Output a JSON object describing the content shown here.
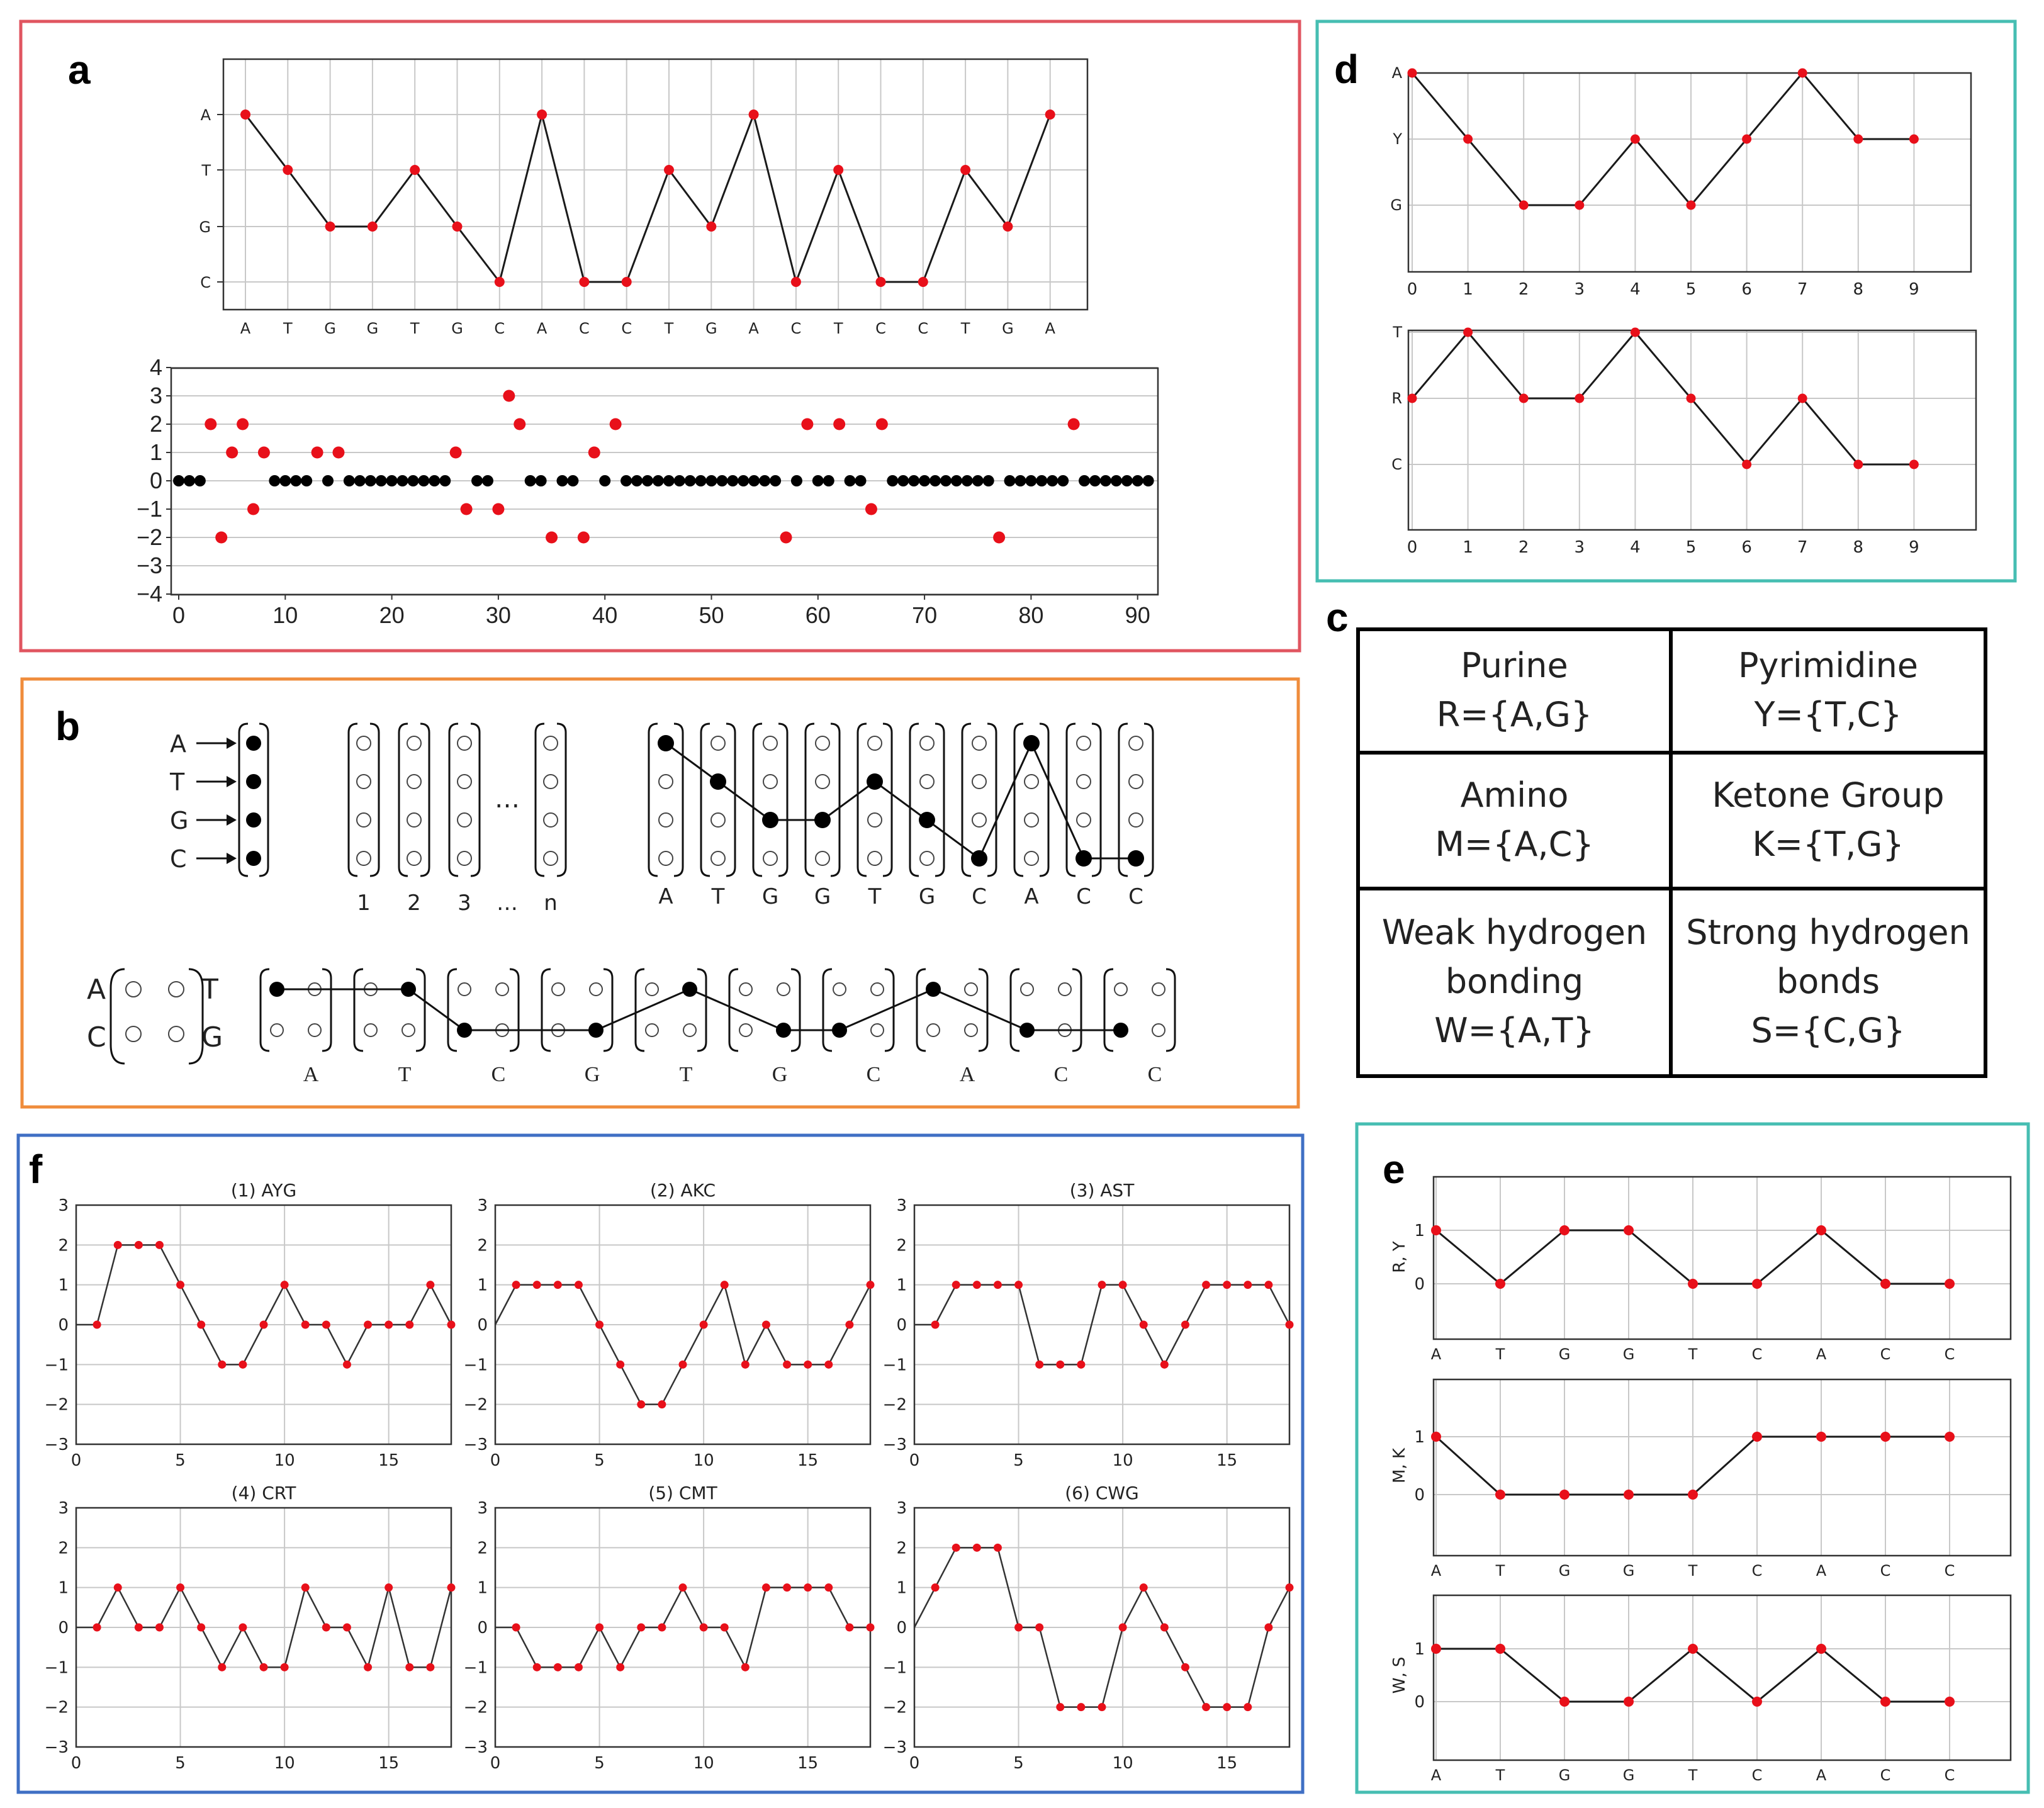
{
  "colors": {
    "red": "#e8101a",
    "panel_a": "#e05560",
    "panel_b": "#ef8c3c",
    "panel_d": "#46beb2",
    "panel_e": "#46beb2",
    "panel_f": "#3f6fc4",
    "line": "#1a1a1a",
    "dot_black": "#000000"
  },
  "panel_labels": {
    "a": "a",
    "b": "b",
    "c": "c",
    "d": "d",
    "e": "e",
    "f": "f"
  },
  "panel_a": {
    "top_chart": {
      "type": "line",
      "y_levels": [
        "A",
        "T",
        "G",
        "C"
      ],
      "sequence": [
        "A",
        "T",
        "G",
        "G",
        "T",
        "G",
        "C",
        "A",
        "C",
        "C",
        "T",
        "G",
        "A",
        "C",
        "T",
        "C",
        "C",
        "T",
        "G",
        "A"
      ]
    },
    "bottom_chart": {
      "type": "scatter",
      "xlim": [
        0,
        91
      ],
      "ylim": [
        -4,
        4
      ],
      "x_ticks": [
        0,
        10,
        20,
        30,
        40,
        50,
        60,
        70,
        80,
        90
      ],
      "y_ticks": [
        4,
        3,
        2,
        1,
        0,
        -1,
        -2,
        -3,
        -4
      ],
      "red_points": [
        [
          3,
          2
        ],
        [
          4,
          -2
        ],
        [
          5,
          1
        ],
        [
          6,
          2
        ],
        [
          7,
          -1
        ],
        [
          8,
          1
        ],
        [
          13,
          1
        ],
        [
          15,
          1
        ],
        [
          26,
          1
        ],
        [
          27,
          -1
        ],
        [
          30,
          -1
        ],
        [
          31,
          3
        ],
        [
          32,
          2
        ],
        [
          35,
          -2
        ],
        [
          38,
          -2
        ],
        [
          39,
          1
        ],
        [
          41,
          2
        ],
        [
          57,
          -2
        ],
        [
          59,
          2
        ],
        [
          62,
          2
        ],
        [
          65,
          -1
        ],
        [
          66,
          2
        ],
        [
          77,
          -2
        ],
        [
          84,
          2
        ]
      ],
      "zero_range": [
        0,
        91
      ]
    }
  },
  "panel_b": {
    "legend_letters": [
      "A",
      "T",
      "G",
      "C"
    ],
    "index_labels": [
      "1",
      "2",
      "3",
      "…",
      "n"
    ],
    "ellipsis": "…",
    "one_hot_sequence": [
      "A",
      "T",
      "G",
      "G",
      "T",
      "G",
      "C",
      "A",
      "C",
      "C"
    ],
    "pair_left": {
      "top_left": "A",
      "top_right": "T",
      "bottom_left": "C",
      "bottom_right": "G"
    },
    "pair_sequence": [
      "A",
      "T",
      "C",
      "G",
      "T",
      "G",
      "C",
      "A",
      "C",
      "C"
    ]
  },
  "panel_c": {
    "cells": [
      {
        "name": "Purine",
        "set": "R={A,G}"
      },
      {
        "name": "Pyrimidine",
        "set": "Y={T,C}"
      },
      {
        "name": "Amino",
        "set": "M={A,C}"
      },
      {
        "name": "Ketone Group",
        "set": "K={T,G}"
      },
      {
        "name": "Weak hydrogen bonding",
        "name_lines": [
          "Weak hydrogen",
          "bonding"
        ],
        "set": "W={A,T}"
      },
      {
        "name": "Strong hydrogen bonds",
        "name_lines": [
          "Strong hydrogen",
          "bonds"
        ],
        "set": "S={C,G}"
      }
    ]
  },
  "panel_d": {
    "charts": [
      {
        "type": "line",
        "y_levels": [
          "A",
          "Y",
          "G"
        ],
        "x_ticks": [
          0,
          1,
          2,
          3,
          4,
          5,
          6,
          7,
          8,
          9
        ],
        "values": [
          "A",
          "Y",
          "G",
          "G",
          "Y",
          "G",
          "Y",
          "A",
          "Y",
          "Y"
        ]
      },
      {
        "type": "line",
        "y_levels": [
          "T",
          "R",
          "C"
        ],
        "x_ticks": [
          0,
          1,
          2,
          3,
          4,
          5,
          6,
          7,
          8,
          9
        ],
        "values": [
          "R",
          "T",
          "R",
          "R",
          "T",
          "R",
          "C",
          "R",
          "C",
          "C"
        ]
      }
    ]
  },
  "panel_e": {
    "x_labels": [
      "A",
      "T",
      "G",
      "G",
      "T",
      "C",
      "A",
      "C",
      "C"
    ],
    "charts": [
      {
        "type": "line",
        "ylabel": "R, Y",
        "y_ticks": [
          1,
          0
        ],
        "values": [
          1,
          0,
          1,
          1,
          0,
          0,
          1,
          0,
          0
        ]
      },
      {
        "type": "line",
        "ylabel": "M, K",
        "y_ticks": [
          1,
          0
        ],
        "values": [
          1,
          0,
          0,
          0,
          0,
          1,
          1,
          1,
          1
        ]
      },
      {
        "type": "line",
        "ylabel": "W, S",
        "y_ticks": [
          1,
          0
        ],
        "values": [
          1,
          1,
          0,
          0,
          1,
          0,
          1,
          0,
          0
        ]
      }
    ]
  },
  "panel_f": {
    "chart_data": [
      {
        "type": "line",
        "title": "(1)  AYG",
        "xlim": [
          0,
          18
        ],
        "ylim": [
          -3,
          3
        ],
        "x_ticks": [
          0,
          5,
          10,
          15
        ],
        "y_ticks": [
          3,
          2,
          1,
          0,
          -1,
          -2,
          -3
        ],
        "values": [
          0,
          0,
          2,
          2,
          2,
          1,
          0,
          -1,
          -1,
          0,
          1,
          0,
          0,
          -1,
          0,
          0,
          0,
          1,
          0
        ]
      },
      {
        "type": "line",
        "title": "(2)  AKC",
        "xlim": [
          0,
          18
        ],
        "ylim": [
          -3,
          3
        ],
        "x_ticks": [
          0,
          5,
          10,
          15
        ],
        "y_ticks": [
          3,
          2,
          1,
          0,
          -1,
          -2,
          -3
        ],
        "values": [
          0,
          1,
          1,
          1,
          1,
          0,
          -1,
          -2,
          -2,
          -1,
          0,
          1,
          -1,
          0,
          -1,
          -1,
          -1,
          0,
          1
        ]
      },
      {
        "type": "line",
        "title": "(3)  AST",
        "xlim": [
          0,
          18
        ],
        "ylim": [
          -3,
          3
        ],
        "x_ticks": [
          0,
          5,
          10,
          15
        ],
        "y_ticks": [
          3,
          2,
          1,
          0,
          -1,
          -2,
          -3
        ],
        "values": [
          0,
          0,
          1,
          1,
          1,
          1,
          -1,
          -1,
          -1,
          1,
          1,
          0,
          -1,
          0,
          1,
          1,
          1,
          1,
          0
        ]
      },
      {
        "type": "line",
        "title": "(4)  CRT",
        "xlim": [
          0,
          18
        ],
        "ylim": [
          -3,
          3
        ],
        "x_ticks": [
          0,
          5,
          10,
          15
        ],
        "y_ticks": [
          3,
          2,
          1,
          0,
          -1,
          -2,
          -3
        ],
        "values": [
          0,
          0,
          1,
          0,
          0,
          1,
          0,
          -1,
          0,
          -1,
          -1,
          1,
          0,
          0,
          -1,
          1,
          -1,
          -1,
          1
        ]
      },
      {
        "type": "line",
        "title": "(5)  CMT",
        "xlim": [
          0,
          18
        ],
        "ylim": [
          -3,
          3
        ],
        "x_ticks": [
          0,
          5,
          10,
          15
        ],
        "y_ticks": [
          3,
          2,
          1,
          0,
          -1,
          -2,
          -3
        ],
        "values": [
          0,
          0,
          -1,
          -1,
          -1,
          0,
          -1,
          0,
          0,
          1,
          0,
          0,
          -1,
          1,
          1,
          1,
          1,
          0,
          0
        ]
      },
      {
        "type": "line",
        "title": "(6)  CWG",
        "xlim": [
          0,
          18
        ],
        "ylim": [
          -3,
          3
        ],
        "x_ticks": [
          0,
          5,
          10,
          15
        ],
        "y_ticks": [
          3,
          2,
          1,
          0,
          -1,
          -2,
          -3
        ],
        "values": [
          0,
          1,
          2,
          2,
          2,
          0,
          0,
          -2,
          -2,
          -2,
          0,
          1,
          0,
          -1,
          -2,
          -2,
          -2,
          0,
          1
        ]
      }
    ]
  }
}
